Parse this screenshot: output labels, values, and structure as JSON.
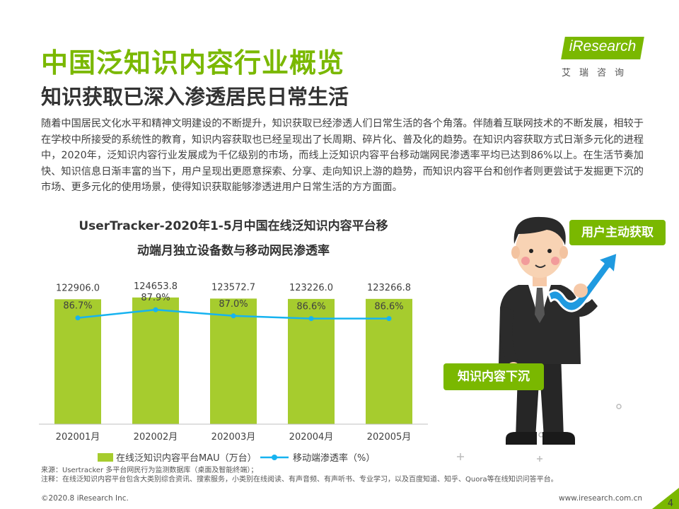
{
  "header": {
    "title": "中国泛知识内容行业概览",
    "subtitle": "知识获取已深入渗透居民日常生活"
  },
  "logo": {
    "brand": "iResearch",
    "cn": "艾瑞咨询"
  },
  "intro": "随着中国居民文化水平和精神文明建设的不断提升，知识获取已经渗透人们日常生活的各个角落。伴随着互联网技术的不断发展，相较于在学校中所接受的系统性的教育，知识内容获取也已经呈现出了长周期、碎片化、普及化的趋势。在知识内容获取方式日渐多元化的进程中，2020年，泛知识内容行业发展成为千亿级别的市场，而线上泛知识内容平台移动端网民渗透率平均已达到86%以上。在生活节奏加快、知识信息日渐丰富的当下，用户呈现出更愿意探索、分享、走向知识上游的趋势，而知识内容平台和创作者则更尝试于发掘更下沉的市场、更多元化的使用场景，使得知识获取能够渗透进用户日常生活的方方面面。",
  "callouts": {
    "up": "用户主动获取",
    "down": "知识内容下沉"
  },
  "chart_data": {
    "type": "bar",
    "title_line1": "UserTracker-2020年1-5月中国在线泛知识内容平台移",
    "title_line2": "动端月独立设备数与移动网民渗透率",
    "categories": [
      "202001月",
      "202002月",
      "202003月",
      "202004月",
      "202005月"
    ],
    "series": [
      {
        "name": "在线泛知识内容平台MAU（万台）",
        "kind": "bar",
        "color": "#a6cc2e",
        "values": [
          122906.0,
          124653.8,
          123572.7,
          123226.0,
          123266.8
        ],
        "labels": [
          "122906.0",
          "124653.8",
          "123572.7",
          "123226.0",
          "123266.8"
        ]
      },
      {
        "name": "移动端渗透率（%）",
        "kind": "line",
        "color": "#16b3f0",
        "values": [
          86.7,
          87.9,
          87.0,
          86.6,
          86.6
        ],
        "labels": [
          "86.7%",
          "87.9%",
          "87.0%",
          "86.6%",
          "86.6%"
        ]
      }
    ],
    "bar_ylim": [
      0,
      160000
    ],
    "line_ylim": [
      70,
      95
    ],
    "grid": false,
    "legend": "bottom"
  },
  "footer": {
    "source": "来源：Usertracker 多平台网民行为监测数据库（桌面及智能终端）；",
    "note": "注释：在线泛知识内容平台包含大类别综合资讯、搜索服务，小类别在线阅读、有声音频、有声听书、专业学习，以及百度知道、知乎、Quora等在线知识问答平台。",
    "copyright": "©2020.8 iResearch Inc.",
    "url": "www.iresearch.com.cn",
    "page": "4"
  },
  "colors": {
    "accent": "#7ab800",
    "bar": "#a6cc2e",
    "line": "#16b3f0"
  },
  "icons": [
    "businessman-illustration",
    "growth-arrow-icon"
  ]
}
